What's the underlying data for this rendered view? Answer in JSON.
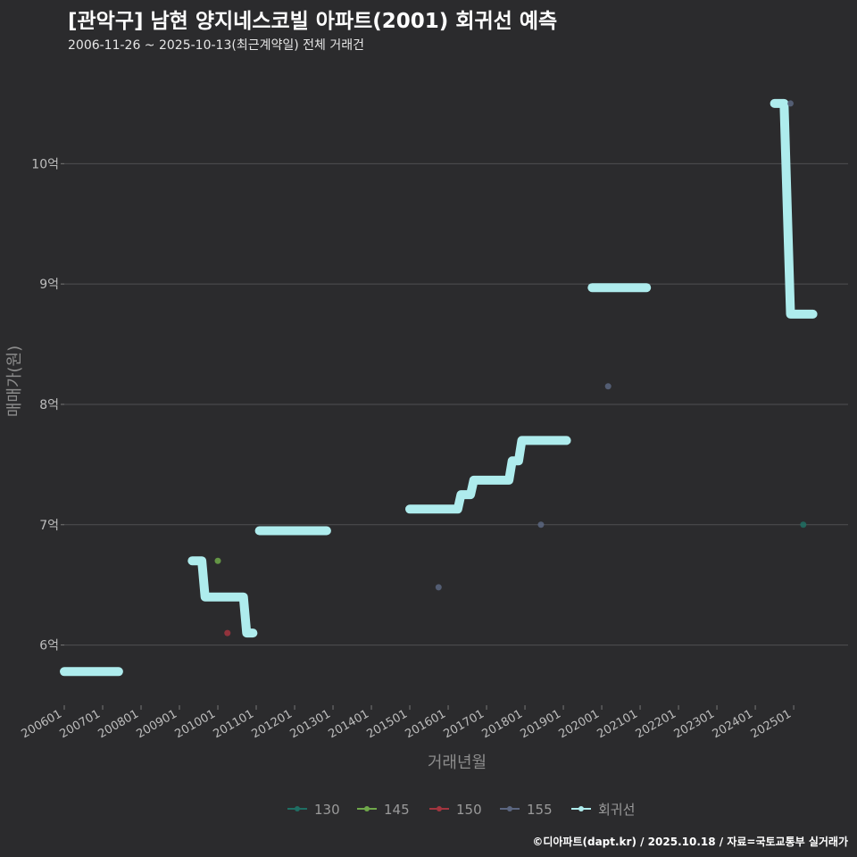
{
  "header": {
    "title": "[관악구] 남현 양지네스코빌 아파트(2001) 회귀선 예측",
    "subtitle": "2006-11-26 ~ 2025-10-13(최근계약일) 전체 거래건"
  },
  "caption": "©디아파트(dapt.kr) / 2025.10.18 / 자료=국토교통부 실거래가",
  "colors": {
    "background": "#2b2b2d",
    "grid": "#4f4f52",
    "regression": "#aeeced",
    "s130": "#1f6e63",
    "s145": "#6fa84a",
    "s150": "#a3353f",
    "s155": "#5b6680"
  },
  "chart_data": {
    "type": "scatter",
    "title": "[관악구] 남현 양지네스코빌 아파트(2001) 회귀선 예측",
    "xlabel": "거래년월",
    "ylabel": "매매가(원)",
    "x_range": [
      "2006-01",
      "2026-06"
    ],
    "ylim": [
      5.5,
      10.9
    ],
    "y_ticks": [
      6,
      7,
      8,
      9,
      10
    ],
    "y_tick_labels": [
      "6억",
      "7억",
      "8억",
      "9억",
      "10억"
    ],
    "x_tick_labels": [
      "200601",
      "200701",
      "200801",
      "200901",
      "201001",
      "201101",
      "201201",
      "201301",
      "201401",
      "201501",
      "201601",
      "201701",
      "201801",
      "201901",
      "202001",
      "202101",
      "202201",
      "202301",
      "202401",
      "202501"
    ],
    "legend": [
      "130",
      "145",
      "150",
      "155",
      "회귀선"
    ],
    "legend_position": "bottom",
    "series": [
      {
        "name": "130",
        "points": [
          {
            "x": "2025-04",
            "y": 7.0
          }
        ]
      },
      {
        "name": "145",
        "points": [
          {
            "x": "2010-01",
            "y": 6.7
          }
        ]
      },
      {
        "name": "150",
        "points": [
          {
            "x": "2010-04",
            "y": 6.1
          }
        ]
      },
      {
        "name": "155",
        "points": [
          {
            "x": "2015-10",
            "y": 6.48
          },
          {
            "x": "2018-06",
            "y": 7.0
          },
          {
            "x": "2020-03",
            "y": 8.15
          },
          {
            "x": "2024-12",
            "y": 10.5
          }
        ]
      }
    ],
    "regression_segments": [
      [
        {
          "x": "2006-01",
          "y": 5.78
        },
        {
          "x": "2007-06",
          "y": 5.78
        }
      ],
      [
        {
          "x": "2009-05",
          "y": 6.7
        },
        {
          "x": "2009-08",
          "y": 6.7
        },
        {
          "x": "2009-09",
          "y": 6.4
        },
        {
          "x": "2010-09",
          "y": 6.4
        },
        {
          "x": "2010-10",
          "y": 6.1
        },
        {
          "x": "2010-12",
          "y": 6.1
        }
      ],
      [
        {
          "x": "2011-02",
          "y": 6.95
        },
        {
          "x": "2012-11",
          "y": 6.95
        }
      ],
      [
        {
          "x": "2015-01",
          "y": 7.13
        },
        {
          "x": "2016-04",
          "y": 7.13
        },
        {
          "x": "2016-05",
          "y": 7.25
        },
        {
          "x": "2016-08",
          "y": 7.25
        },
        {
          "x": "2016-09",
          "y": 7.37
        },
        {
          "x": "2017-08",
          "y": 7.37
        },
        {
          "x": "2017-09",
          "y": 7.53
        },
        {
          "x": "2017-11",
          "y": 7.53
        },
        {
          "x": "2017-12",
          "y": 7.7
        },
        {
          "x": "2019-02",
          "y": 7.7
        }
      ],
      [
        {
          "x": "2019-10",
          "y": 8.97
        },
        {
          "x": "2021-03",
          "y": 8.97
        }
      ],
      [
        {
          "x": "2024-07",
          "y": 10.5
        },
        {
          "x": "2024-10",
          "y": 10.5
        },
        {
          "x": "2024-12",
          "y": 8.75
        },
        {
          "x": "2025-07",
          "y": 8.75
        }
      ]
    ]
  }
}
